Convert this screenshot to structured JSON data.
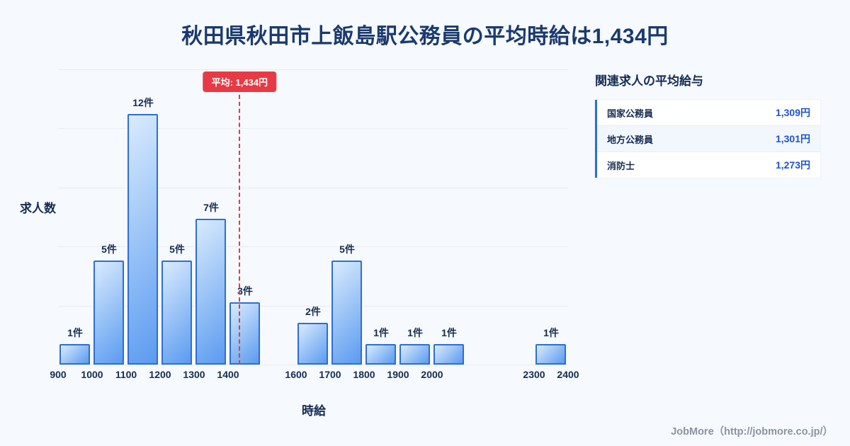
{
  "page": {
    "title": "秋田県秋田市上飯島駅公務員の平均時給は1,434円",
    "footer_credit": "JobMore（http://jobmore.co.jp/）"
  },
  "chart_data": {
    "type": "bar",
    "title": "秋田県秋田市上飯島駅公務員の平均時給は1,434円",
    "xlabel": "時給",
    "ylabel": "求人数",
    "ylim": [
      0,
      14
    ],
    "grid": true,
    "unit": "件",
    "x_ticks": [
      900,
      1000,
      1100,
      1200,
      1300,
      1400,
      1600,
      1700,
      1800,
      1900,
      2000,
      2300,
      2400
    ],
    "bins": [
      {
        "x0": 900,
        "x1": 1000,
        "count": 1,
        "label": "1件"
      },
      {
        "x0": 1000,
        "x1": 1100,
        "count": 5,
        "label": "5件"
      },
      {
        "x0": 1100,
        "x1": 1200,
        "count": 12,
        "label": "12件"
      },
      {
        "x0": 1200,
        "x1": 1300,
        "count": 5,
        "label": "5件"
      },
      {
        "x0": 1300,
        "x1": 1400,
        "count": 7,
        "label": "7件"
      },
      {
        "x0": 1400,
        "x1": 1500,
        "count": 3,
        "label": "3件"
      },
      {
        "x0": 1600,
        "x1": 1700,
        "count": 2,
        "label": "2件"
      },
      {
        "x0": 1700,
        "x1": 1800,
        "count": 5,
        "label": "5件"
      },
      {
        "x0": 1800,
        "x1": 1900,
        "count": 1,
        "label": "1件"
      },
      {
        "x0": 1900,
        "x1": 2000,
        "count": 1,
        "label": "1件"
      },
      {
        "x0": 2000,
        "x1": 2100,
        "count": 1,
        "label": "1件"
      },
      {
        "x0": 2300,
        "x1": 2400,
        "count": 1,
        "label": "1件"
      }
    ],
    "average": {
      "value": 1434,
      "label": "平均: 1,434円"
    },
    "colors": {
      "bar_fill_start": "#d9ebfd",
      "bar_fill_end": "#5b9bf0",
      "bar_border": "#2e6fd2",
      "average_line": "#e83a44",
      "grid": "#e8edf4"
    }
  },
  "side_panel": {
    "heading": "関連求人の平均給与",
    "rows": [
      {
        "label": "国家公務員",
        "value": "1,309円"
      },
      {
        "label": "地方公務員",
        "value": "1,301円"
      },
      {
        "label": "消防士",
        "value": "1,273円"
      }
    ]
  }
}
